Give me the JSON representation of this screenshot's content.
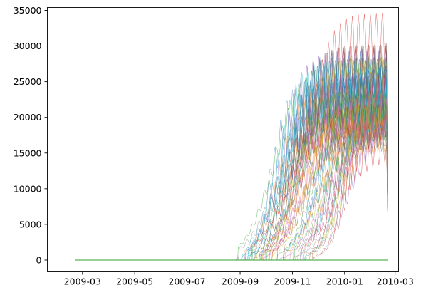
{
  "chart_data": {
    "type": "line",
    "title": "",
    "xlabel": "",
    "ylabel": "",
    "xlim": [
      "2009-01-19",
      "2010-03-05"
    ],
    "ylim": [
      -1650,
      35400
    ],
    "x_ticks": [
      {
        "value": "2009-03-01",
        "label": "2009-03"
      },
      {
        "value": "2009-05-01",
        "label": "2009-05"
      },
      {
        "value": "2009-07-01",
        "label": "2009-07"
      },
      {
        "value": "2009-09-01",
        "label": "2009-09"
      },
      {
        "value": "2009-11-01",
        "label": "2009-11"
      },
      {
        "value": "2010-01-01",
        "label": "2010-01"
      },
      {
        "value": "2010-03-01",
        "label": "2010-03"
      }
    ],
    "y_ticks": [
      {
        "value": 0,
        "label": "0"
      },
      {
        "value": 5000,
        "label": "5000"
      },
      {
        "value": 10000,
        "label": "10000"
      },
      {
        "value": 15000,
        "label": "15000"
      },
      {
        "value": 20000,
        "label": "20000"
      },
      {
        "value": 25000,
        "label": "25000"
      },
      {
        "value": 30000,
        "label": "30000"
      },
      {
        "value": 35000,
        "label": "35000"
      }
    ],
    "grid": false,
    "legend": "none",
    "x_range": [
      "2009-02-20",
      "2010-02-20"
    ],
    "series_count": 60,
    "series_envelope": [
      {
        "x": "2009-02-20",
        "low": 0,
        "median": 0,
        "high": 0
      },
      {
        "x": "2009-09-15",
        "low": 0,
        "median": 0,
        "high": 100
      },
      {
        "x": "2009-10-15",
        "low": 0,
        "median": 50,
        "high": 1500
      },
      {
        "x": "2009-11-01",
        "low": 0,
        "median": 400,
        "high": 7000
      },
      {
        "x": "2009-11-15",
        "low": 20,
        "median": 2000,
        "high": 15000
      },
      {
        "x": "2009-12-01",
        "low": 200,
        "median": 6000,
        "high": 22000
      },
      {
        "x": "2009-12-15",
        "low": 1500,
        "median": 12000,
        "high": 26000
      },
      {
        "x": "2010-01-01",
        "low": 5000,
        "median": 17000,
        "high": 28000
      },
      {
        "x": "2010-01-15",
        "low": 10000,
        "median": 20000,
        "high": 30000
      },
      {
        "x": "2010-02-01",
        "low": 11000,
        "median": 21000,
        "high": 33500
      },
      {
        "x": "2010-02-20",
        "low": 8000,
        "median": 20000,
        "high": 26000
      }
    ],
    "peak_value": 33700,
    "peak_date": "2010-01-25",
    "palette": [
      "#1f77b4",
      "#ff7f0e",
      "#2ca02c",
      "#d62728",
      "#9467bd",
      "#8c564b",
      "#e377c2",
      "#7f7f7f",
      "#bcbd22",
      "#17becf"
    ]
  }
}
